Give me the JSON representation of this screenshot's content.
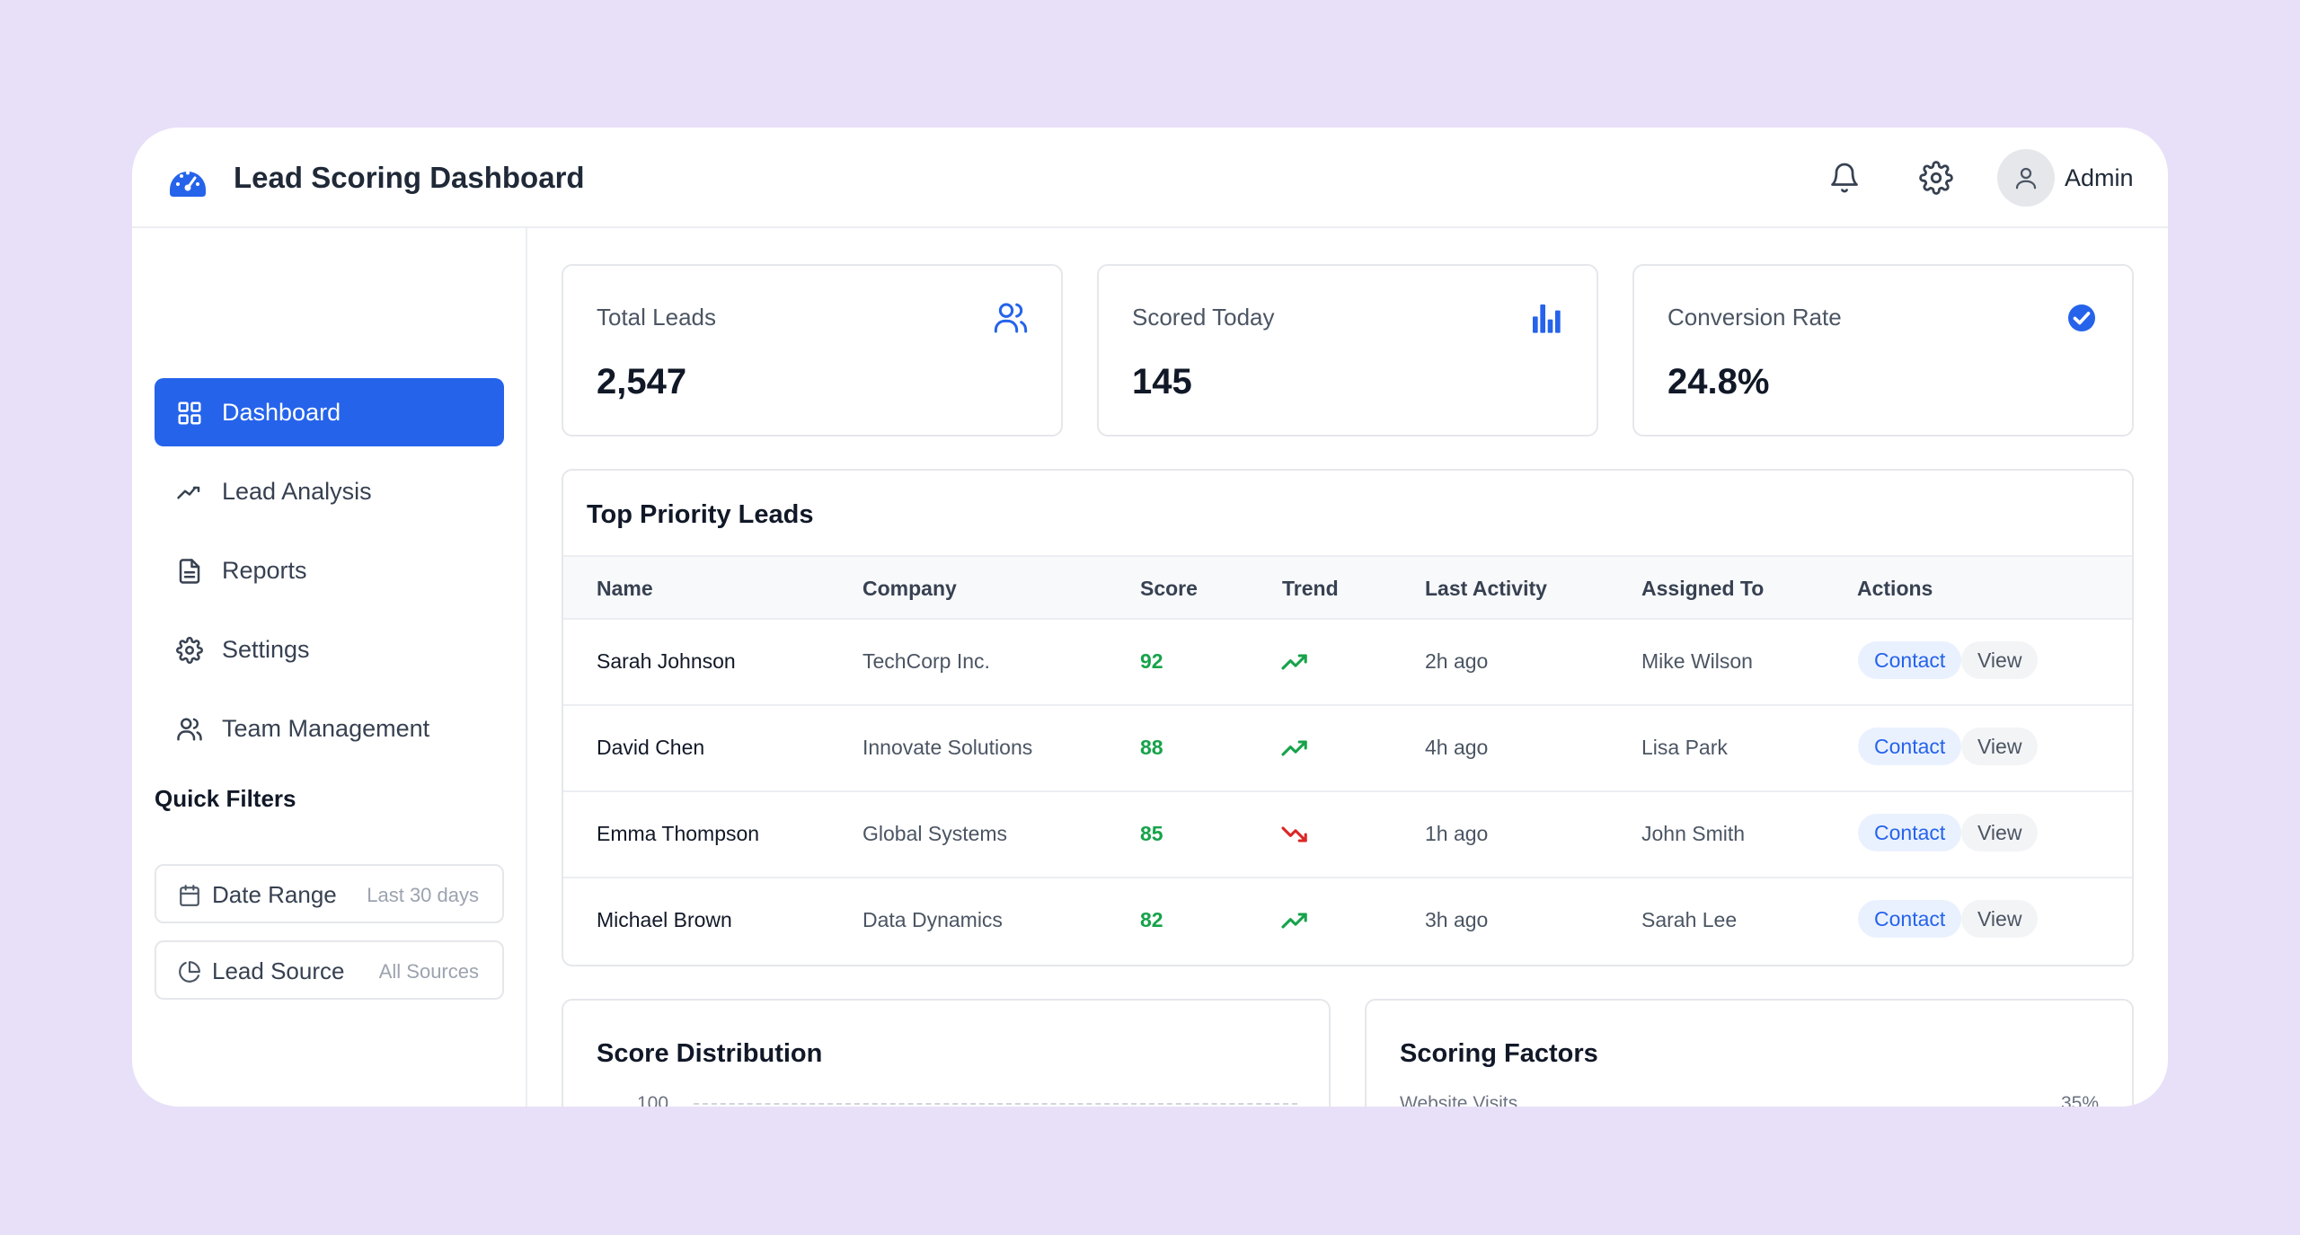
{
  "header": {
    "title": "Lead Scoring Dashboard",
    "user_label": "Admin",
    "logo_icon": "gauge-icon",
    "accent": "#2563eb"
  },
  "sidebar": {
    "items": [
      {
        "label": "Dashboard",
        "icon": "grid-icon",
        "active": true
      },
      {
        "label": "Lead Analysis",
        "icon": "trend-line-icon",
        "active": false
      },
      {
        "label": "Reports",
        "icon": "document-icon",
        "active": false
      },
      {
        "label": "Settings",
        "icon": "gear-icon",
        "active": false
      },
      {
        "label": "Team Management",
        "icon": "users-icon",
        "active": false
      }
    ],
    "quick_filters_title": "Quick Filters",
    "filters": [
      {
        "label": "Date Range",
        "value": "Last 30 days",
        "icon": "calendar-icon"
      },
      {
        "label": "Lead Source",
        "value": "All Sources",
        "icon": "pie-chart-icon"
      }
    ]
  },
  "stats": [
    {
      "label": "Total Leads",
      "value": "2,547",
      "icon": "users-icon"
    },
    {
      "label": "Scored Today",
      "value": "145",
      "icon": "bar-chart-icon"
    },
    {
      "label": "Conversion Rate",
      "value": "24.8%",
      "icon": "check-circle-icon"
    }
  ],
  "leads_table": {
    "title": "Top Priority Leads",
    "columns": [
      "Name",
      "Company",
      "Score",
      "Trend",
      "Last Activity",
      "Assigned To",
      "Actions"
    ],
    "rows": [
      {
        "name": "Sarah Johnson",
        "company": "TechCorp Inc.",
        "score": "92",
        "trend": "up",
        "last_activity": "2h ago",
        "assigned_to": "Mike Wilson",
        "contact_label": "Contact",
        "view_label": "View"
      },
      {
        "name": "David Chen",
        "company": "Innovate Solutions",
        "score": "88",
        "trend": "up",
        "last_activity": "4h ago",
        "assigned_to": "Lisa Park",
        "contact_label": "Contact",
        "view_label": "View"
      },
      {
        "name": "Emma Thompson",
        "company": "Global Systems",
        "score": "85",
        "trend": "down",
        "last_activity": "1h ago",
        "assigned_to": "John Smith",
        "contact_label": "Contact",
        "view_label": "View"
      },
      {
        "name": "Michael Brown",
        "company": "Data Dynamics",
        "score": "82",
        "trend": "up",
        "last_activity": "3h ago",
        "assigned_to": "Sarah Lee",
        "contact_label": "Contact",
        "view_label": "View"
      }
    ],
    "trend_colors": {
      "up": "#16a34a",
      "down": "#dc2626"
    }
  },
  "score_distribution": {
    "title": "Score Distribution",
    "cut_tick": "100"
  },
  "scoring_factors": {
    "title": "Scoring Factors",
    "cut_label": "Website Visits",
    "cut_value": "35%"
  }
}
